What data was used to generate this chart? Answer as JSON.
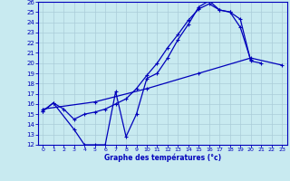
{
  "xlabel": "Graphe des températures (°c)",
  "xlim": [
    -0.5,
    23.5
  ],
  "ylim": [
    12,
    26
  ],
  "xticks": [
    0,
    1,
    2,
    3,
    4,
    5,
    6,
    7,
    8,
    9,
    10,
    11,
    12,
    13,
    14,
    15,
    16,
    17,
    18,
    19,
    20,
    21,
    22,
    23
  ],
  "yticks": [
    12,
    13,
    14,
    15,
    16,
    17,
    18,
    19,
    20,
    21,
    22,
    23,
    24,
    25,
    26
  ],
  "bg_color": "#c8eaf0",
  "line_color": "#0000bb",
  "grid_color": "#aaccd8",
  "line1_x": [
    0,
    1,
    3,
    4,
    5,
    6,
    7,
    8,
    9,
    10,
    11,
    12,
    13,
    14,
    15,
    16,
    17,
    18,
    19,
    20,
    21
  ],
  "line1_y": [
    15.3,
    16.1,
    13.5,
    12.0,
    12.0,
    12.0,
    17.2,
    12.8,
    15.0,
    18.5,
    19.0,
    20.5,
    22.3,
    23.8,
    25.5,
    26.1,
    25.2,
    25.0,
    24.3,
    20.2,
    20.0
  ],
  "line2_x": [
    0,
    1,
    2,
    3,
    4,
    5,
    6,
    7,
    8,
    9,
    10,
    11,
    12,
    13,
    14,
    15,
    16,
    17,
    18,
    19,
    20
  ],
  "line2_y": [
    15.3,
    16.1,
    15.5,
    14.5,
    15.0,
    15.2,
    15.5,
    16.0,
    16.5,
    17.5,
    18.8,
    20.0,
    21.5,
    22.8,
    24.2,
    25.3,
    25.8,
    25.2,
    25.0,
    23.5,
    20.3
  ],
  "line3_x": [
    0,
    5,
    10,
    15,
    20,
    23
  ],
  "line3_y": [
    15.5,
    16.2,
    17.5,
    19.0,
    20.5,
    19.8
  ]
}
